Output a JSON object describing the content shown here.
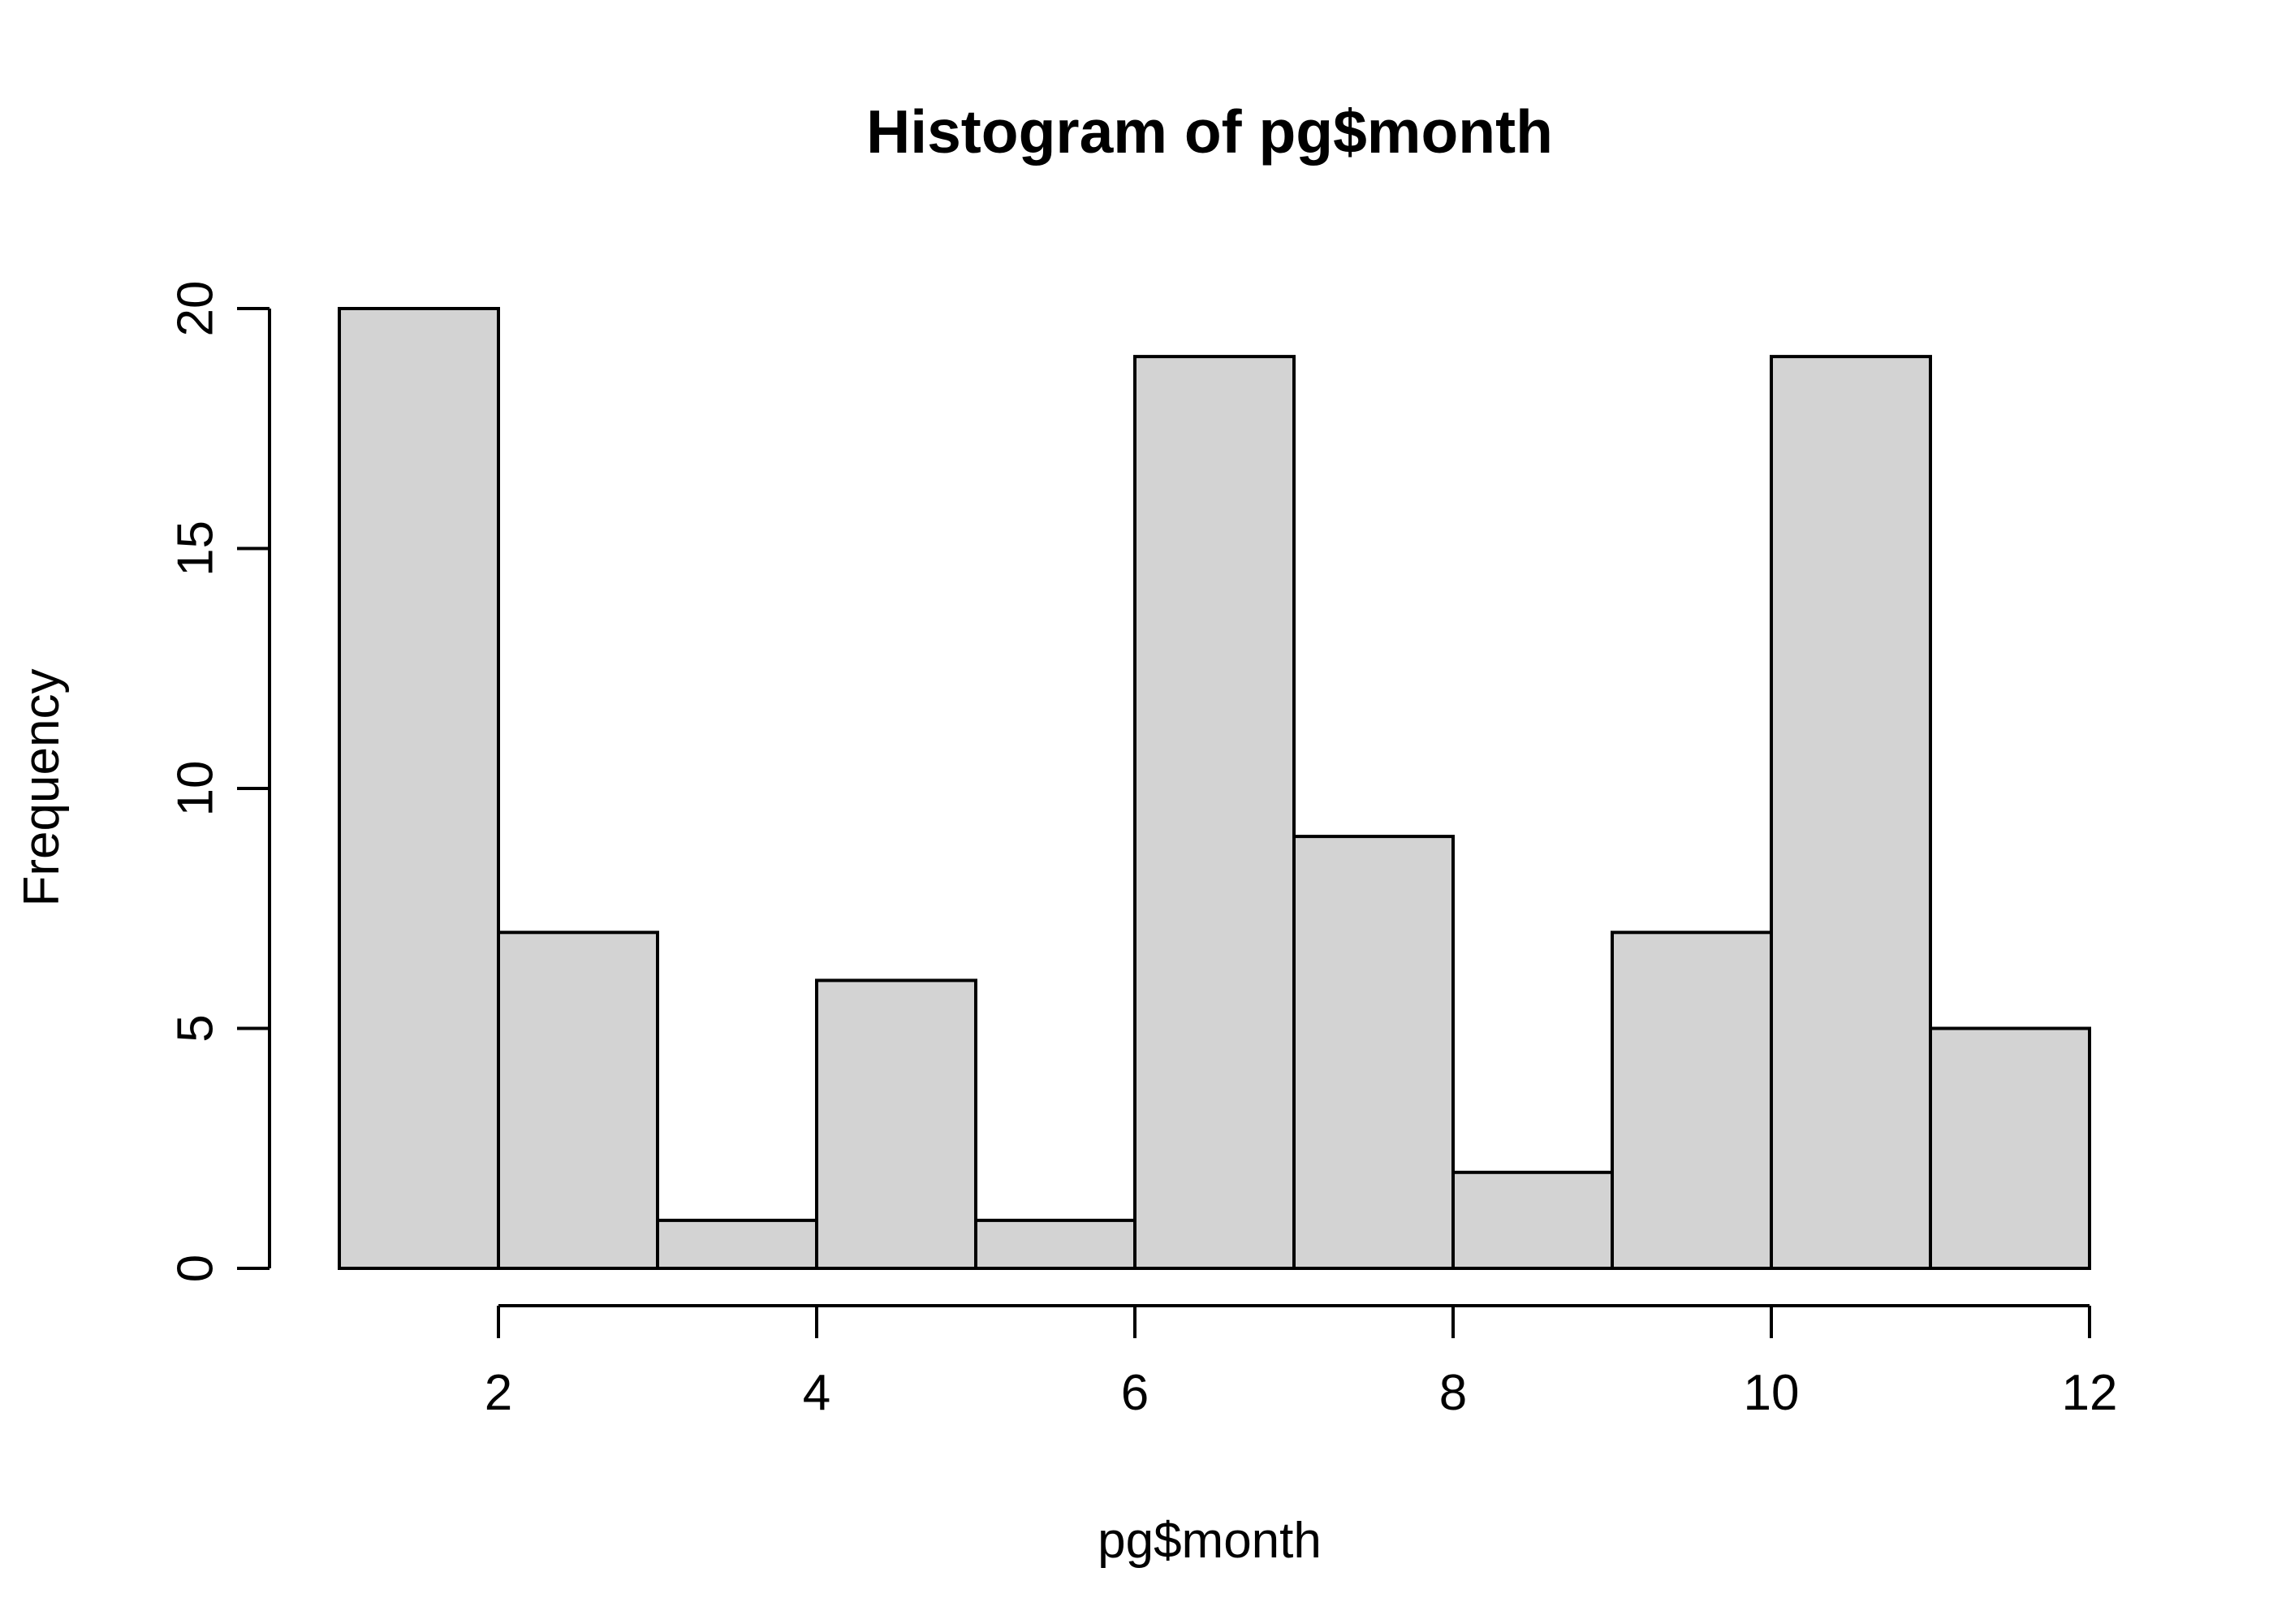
{
  "chart_data": {
    "type": "bar",
    "title": "Histogram of pg$month",
    "xlabel": "pg$month",
    "ylabel": "Frequency",
    "bins": [
      [
        1,
        2
      ],
      [
        2,
        3
      ],
      [
        3,
        4
      ],
      [
        4,
        5
      ],
      [
        5,
        6
      ],
      [
        6,
        7
      ],
      [
        7,
        8
      ],
      [
        8,
        9
      ],
      [
        9,
        10
      ],
      [
        10,
        11
      ],
      [
        11,
        12
      ]
    ],
    "values": [
      20,
      7,
      1,
      6,
      1,
      19,
      9,
      2,
      7,
      19,
      5
    ],
    "xlim": [
      1,
      12
    ],
    "ylim": [
      0,
      20
    ],
    "x_ticks": [
      2,
      4,
      6,
      8,
      10,
      12
    ],
    "x_tick_labels": [
      "2",
      "4",
      "6",
      "8",
      "10",
      "12"
    ],
    "y_ticks": [
      0,
      5,
      10,
      15,
      20
    ],
    "y_tick_labels": [
      "0",
      "5",
      "10",
      "15",
      "20"
    ],
    "bar_fill": "#d3d3d3",
    "grid": false
  }
}
